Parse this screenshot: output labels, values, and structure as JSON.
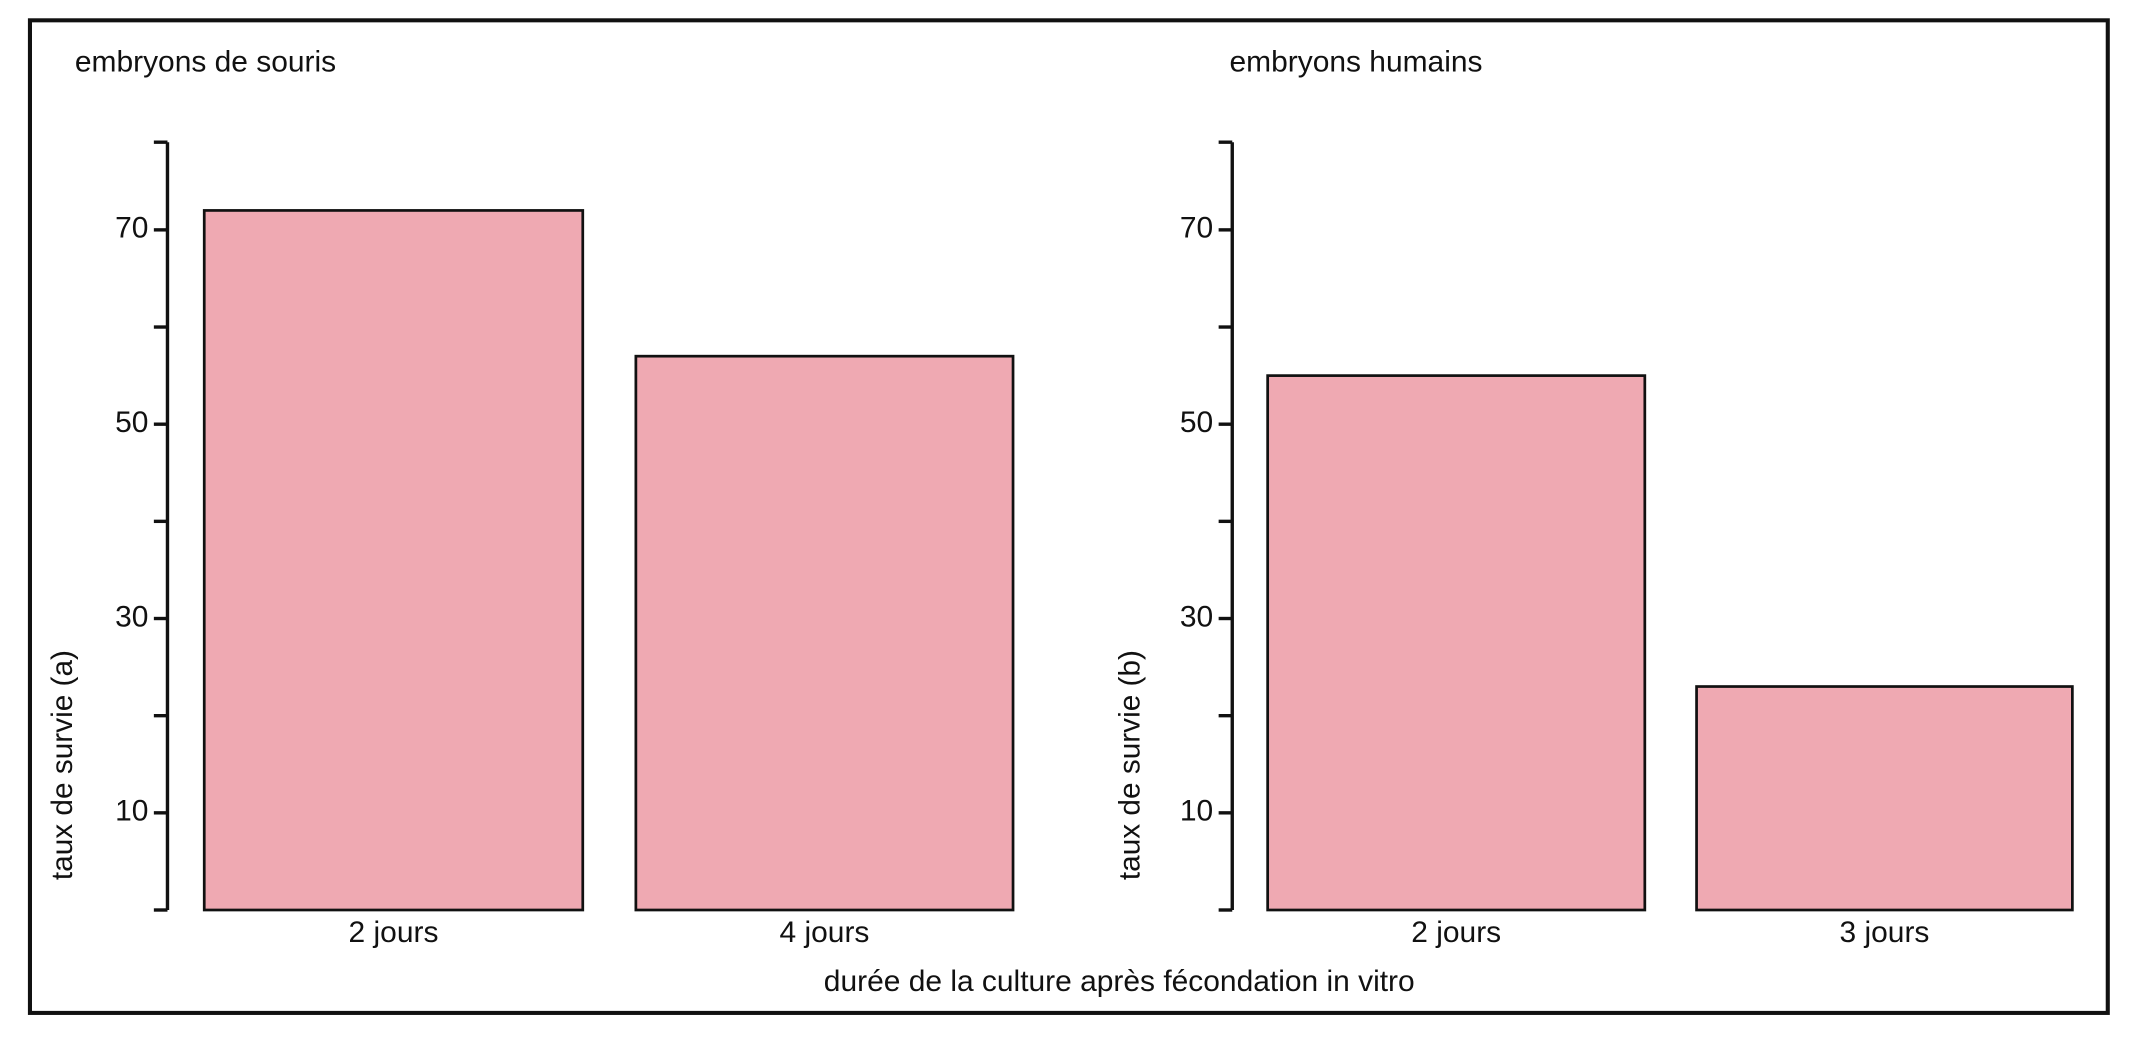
{
  "chart_data": [
    {
      "type": "bar",
      "title": "embryons de souris",
      "ylabel": "taux de survie (a)",
      "categories": [
        "2 jours",
        "4 jours"
      ],
      "values": [
        72,
        57
      ],
      "color": "#efa9b2",
      "ylim": [
        0,
        80
      ],
      "yticks": [
        10,
        30,
        50,
        70
      ],
      "minor_yticks": [
        0,
        20,
        40,
        60,
        80
      ]
    },
    {
      "type": "bar",
      "title": "embryons humains",
      "ylabel": "taux de survie (b)",
      "categories": [
        "2  jours",
        "3 jours"
      ],
      "values": [
        55,
        23
      ],
      "color": "#efa9b2",
      "ylim": [
        0,
        80
      ],
      "yticks": [
        10,
        30,
        50,
        70
      ],
      "minor_yticks": [
        0,
        20,
        40,
        60,
        80
      ]
    }
  ],
  "xlabel": "durée de la culture après fécondation in vitro"
}
